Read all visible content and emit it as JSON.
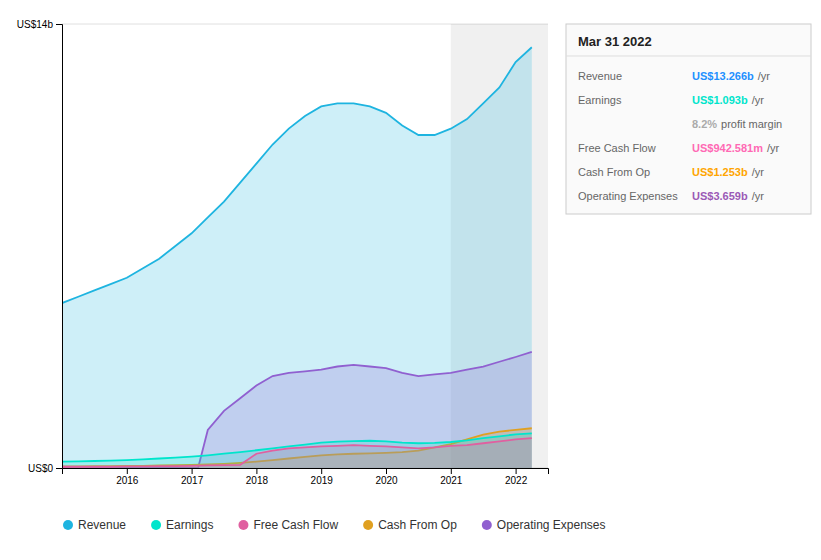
{
  "chart_data": {
    "type": "area",
    "xlim": [
      2015.0,
      2022.5
    ],
    "xticks": [
      2016,
      2017,
      2018,
      2019,
      2020,
      2021,
      2022
    ],
    "ylim": [
      0,
      14
    ],
    "yticks": [
      {
        "value": 0,
        "label": "US$0"
      },
      {
        "value": 14,
        "label": "US$14b"
      }
    ],
    "grid": true,
    "legend": "bottom",
    "highlight_x": [
      2021.0,
      2022.5
    ],
    "series": [
      {
        "name": "Revenue",
        "color": "#1eb4e0",
        "x": [
          2015.0,
          2015.25,
          2015.5,
          2015.75,
          2016.0,
          2016.25,
          2016.5,
          2016.75,
          2017.0,
          2017.25,
          2017.5,
          2017.75,
          2018.0,
          2018.25,
          2018.5,
          2018.75,
          2019.0,
          2019.25,
          2019.5,
          2019.75,
          2020.0,
          2020.25,
          2020.5,
          2020.75,
          2021.0,
          2021.25,
          2021.5,
          2021.75,
          2022.0,
          2022.25
        ],
        "values": [
          5.2,
          5.4,
          5.6,
          5.8,
          6.0,
          6.3,
          6.6,
          7.0,
          7.4,
          7.9,
          8.4,
          9.0,
          9.6,
          10.2,
          10.7,
          11.1,
          11.4,
          11.5,
          11.5,
          11.4,
          11.2,
          10.8,
          10.5,
          10.5,
          10.7,
          11.0,
          11.5,
          12.0,
          12.8,
          13.266
        ]
      },
      {
        "name": "Earnings",
        "color": "#00e5cc",
        "x": [
          2015.0,
          2015.25,
          2015.5,
          2015.75,
          2016.0,
          2016.25,
          2016.5,
          2016.75,
          2017.0,
          2017.25,
          2017.5,
          2017.75,
          2018.0,
          2018.25,
          2018.5,
          2018.75,
          2019.0,
          2019.25,
          2019.5,
          2019.75,
          2020.0,
          2020.25,
          2020.5,
          2020.75,
          2021.0,
          2021.25,
          2021.5,
          2021.75,
          2022.0,
          2022.25
        ],
        "values": [
          0.2,
          0.21,
          0.22,
          0.23,
          0.25,
          0.27,
          0.3,
          0.33,
          0.36,
          0.4,
          0.45,
          0.5,
          0.56,
          0.62,
          0.68,
          0.74,
          0.8,
          0.83,
          0.85,
          0.86,
          0.84,
          0.8,
          0.78,
          0.79,
          0.82,
          0.87,
          0.94,
          1.0,
          1.06,
          1.093
        ]
      },
      {
        "name": "Free Cash Flow",
        "color": "#e060a0",
        "x": [
          2015.0,
          2015.25,
          2015.5,
          2015.75,
          2016.0,
          2016.25,
          2016.5,
          2016.75,
          2017.0,
          2017.25,
          2017.5,
          2017.75,
          2018.0,
          2018.25,
          2018.5,
          2018.75,
          2019.0,
          2019.25,
          2019.5,
          2019.75,
          2020.0,
          2020.25,
          2020.5,
          2020.75,
          2021.0,
          2021.25,
          2021.5,
          2021.75,
          2022.0,
          2022.25
        ],
        "values": [
          0.04,
          0.04,
          0.04,
          0.04,
          0.05,
          0.05,
          0.06,
          0.06,
          0.07,
          0.08,
          0.09,
          0.1,
          0.45,
          0.55,
          0.62,
          0.65,
          0.68,
          0.7,
          0.72,
          0.7,
          0.68,
          0.65,
          0.62,
          0.65,
          0.7,
          0.72,
          0.78,
          0.84,
          0.9,
          0.943
        ]
      },
      {
        "name": "Cash From Op",
        "color": "#e0a020",
        "x": [
          2015.0,
          2015.25,
          2015.5,
          2015.75,
          2016.0,
          2016.25,
          2016.5,
          2016.75,
          2017.0,
          2017.25,
          2017.5,
          2017.75,
          2018.0,
          2018.25,
          2018.5,
          2018.75,
          2019.0,
          2019.25,
          2019.5,
          2019.75,
          2020.0,
          2020.25,
          2020.5,
          2020.75,
          2021.0,
          2021.25,
          2021.5,
          2021.75,
          2022.0,
          2022.25
        ],
        "values": [
          0.05,
          0.05,
          0.06,
          0.06,
          0.07,
          0.07,
          0.08,
          0.09,
          0.1,
          0.11,
          0.13,
          0.16,
          0.2,
          0.25,
          0.3,
          0.35,
          0.4,
          0.43,
          0.45,
          0.46,
          0.48,
          0.5,
          0.55,
          0.65,
          0.75,
          0.9,
          1.05,
          1.15,
          1.2,
          1.253
        ]
      },
      {
        "name": "Operating Expenses",
        "color": "#9060d0",
        "x": [
          2015.0,
          2015.25,
          2015.5,
          2015.75,
          2016.0,
          2016.25,
          2016.5,
          2016.75,
          2017.0,
          2017.1,
          2017.25,
          2017.5,
          2017.75,
          2018.0,
          2018.25,
          2018.5,
          2018.75,
          2019.0,
          2019.25,
          2019.5,
          2019.75,
          2020.0,
          2020.25,
          2020.5,
          2020.75,
          2021.0,
          2021.25,
          2021.5,
          2021.75,
          2022.0,
          2022.25
        ],
        "values": [
          0.0,
          0.0,
          0.0,
          0.0,
          0.0,
          0.0,
          0.0,
          0.0,
          0.0,
          0.0,
          1.2,
          1.8,
          2.2,
          2.6,
          2.9,
          3.0,
          3.05,
          3.1,
          3.2,
          3.25,
          3.2,
          3.15,
          3.0,
          2.9,
          2.95,
          3.0,
          3.1,
          3.2,
          3.35,
          3.5,
          3.659
        ]
      }
    ],
    "info_box": {
      "title": "Mar 31 2022",
      "rows": [
        {
          "label": "Revenue",
          "value": "US$13.266b",
          "suffix": "/yr",
          "color": "#1e90ff"
        },
        {
          "label": "Earnings",
          "value": "US$1.093b",
          "suffix": "/yr",
          "color": "#00e5cc"
        },
        {
          "value": "8.2%",
          "suffix": "profit margin",
          "color": "#aaaaaa"
        },
        {
          "label": "Free Cash Flow",
          "value": "US$942.581m",
          "suffix": "/yr",
          "color": "#ff69b4"
        },
        {
          "label": "Cash From Op",
          "value": "US$1.253b",
          "suffix": "/yr",
          "color": "#ffa500"
        },
        {
          "label": "Operating Expenses",
          "value": "US$3.659b",
          "suffix": "/yr",
          "color": "#9b59b6"
        }
      ]
    }
  }
}
